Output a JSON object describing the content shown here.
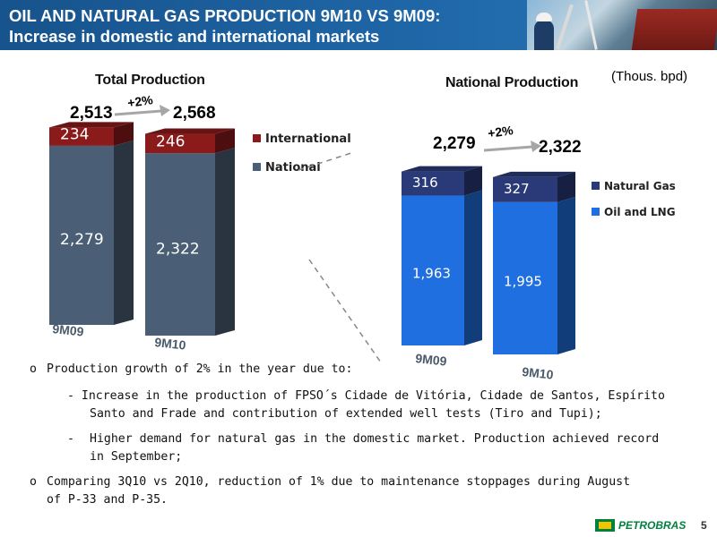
{
  "header": {
    "title_line1": "OIL AND NATURAL GAS PRODUCTION 9M10 VS 9M09:",
    "title_line2": "Increase in domestic and international markets"
  },
  "unit_label": "(Thous. bpd)",
  "chart_data": [
    {
      "type": "bar",
      "stacked": true,
      "title": "Total Production",
      "categories": [
        "9M09",
        "9M10"
      ],
      "series": [
        {
          "name": "National",
          "values": [
            2279,
            2322
          ],
          "labels": [
            "2,279",
            "2,322"
          ],
          "color": "#4a5f75"
        },
        {
          "name": "International",
          "values": [
            234,
            246
          ],
          "labels": [
            "234",
            "246"
          ],
          "color": "#8b1a1a"
        }
      ],
      "totals": [
        "2,513",
        "2,568"
      ],
      "growth": "+2%",
      "legend": "right"
    },
    {
      "type": "bar",
      "stacked": true,
      "title": "National Production",
      "categories": [
        "9M09",
        "9M10"
      ],
      "series": [
        {
          "name": "Oil and LNG",
          "values": [
            1963,
            1995
          ],
          "labels": [
            "1,963",
            "1,995"
          ],
          "color": "#1f6fe0"
        },
        {
          "name": "Natural Gas",
          "values": [
            316,
            327
          ],
          "labels": [
            "316",
            "327"
          ],
          "color": "#2a3a78"
        }
      ],
      "totals": [
        "2,279",
        "2,322"
      ],
      "growth": "+2%",
      "legend": "right"
    }
  ],
  "bullets": {
    "b1": "Production growth of 2% in the year due to:",
    "s1_line1": "- Increase in the production of FPSO´s Cidade de Vitória, Cidade de Santos, Espírito",
    "s1_line2": "Santo and Frade and contribution of extended well tests (Tiro and Tupi);",
    "s2_dash": "-",
    "s2_line1": "Higher demand for natural gas in the domestic market. Production achieved record",
    "s2_line2": "in September;",
    "b2_line1": "Comparing 3Q10 vs 2Q10, reduction of 1% due to maintenance stoppages during August",
    "b2_line2": "of P-33 and P-35."
  },
  "footer": {
    "logo_text": "PETROBRAS",
    "page_number": "5"
  },
  "icons": {
    "bullet": "circle-bullet-icon",
    "logo": "petrobras-br-logo"
  }
}
